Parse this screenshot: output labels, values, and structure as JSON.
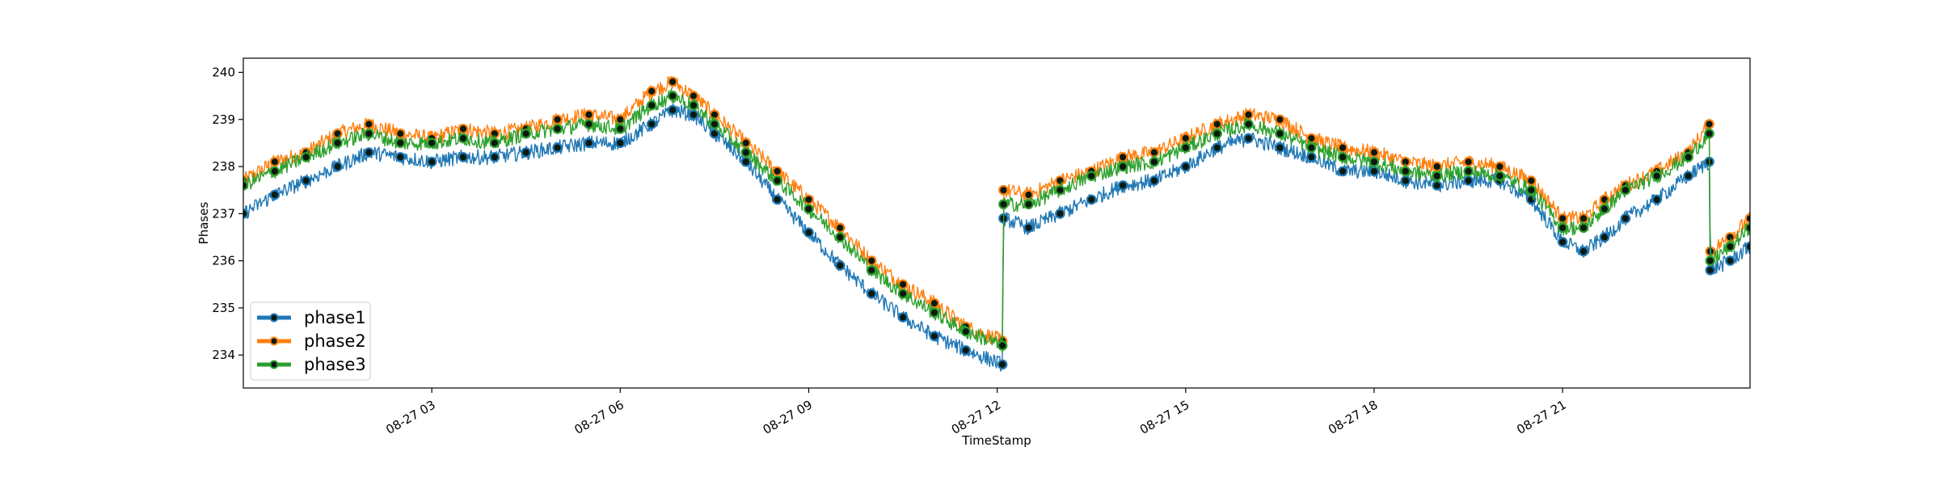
{
  "chart_data": {
    "type": "line",
    "title": "",
    "xlabel": "TimeStamp",
    "ylabel": "Phases",
    "x_range": [
      "08-27 00:00",
      "08-27 23:59"
    ],
    "ylim": [
      233.3,
      240.3
    ],
    "x_ticks": [
      {
        "at": "08-27 03:00",
        "label": "08-27 03"
      },
      {
        "at": "08-27 06:00",
        "label": "08-27 06"
      },
      {
        "at": "08-27 09:00",
        "label": "08-27 09"
      },
      {
        "at": "08-27 12:00",
        "label": "08-27 12"
      },
      {
        "at": "08-27 15:00",
        "label": "08-27 15"
      },
      {
        "at": "08-27 18:00",
        "label": "08-27 18"
      },
      {
        "at": "08-27 21:00",
        "label": "08-27 21"
      }
    ],
    "y_ticks": [
      234,
      235,
      236,
      237,
      238,
      239,
      240
    ],
    "grid": false,
    "legend": "lower-left",
    "x": [
      "00:00",
      "00:30",
      "01:00",
      "01:30",
      "02:00",
      "02:30",
      "03:00",
      "03:30",
      "04:00",
      "04:30",
      "05:00",
      "05:30",
      "06:00",
      "06:30",
      "06:50",
      "07:10",
      "07:30",
      "08:00",
      "08:30",
      "09:00",
      "09:30",
      "10:00",
      "10:30",
      "11:00",
      "11:30",
      "12:05",
      "12:06",
      "12:30",
      "13:00",
      "13:30",
      "14:00",
      "14:30",
      "15:00",
      "15:30",
      "16:00",
      "16:30",
      "17:00",
      "17:30",
      "18:00",
      "18:30",
      "19:00",
      "19:30",
      "20:00",
      "20:30",
      "21:00",
      "21:20",
      "21:40",
      "22:00",
      "22:30",
      "23:00",
      "23:20",
      "23:21",
      "23:40",
      "23:59"
    ],
    "series": [
      {
        "name": "phase1",
        "color": "#1f77b4",
        "values": [
          237.0,
          237.4,
          237.7,
          238.0,
          238.3,
          238.2,
          238.1,
          238.2,
          238.2,
          238.3,
          238.4,
          238.5,
          238.5,
          238.9,
          239.2,
          239.1,
          238.7,
          238.1,
          237.3,
          236.6,
          235.9,
          235.3,
          234.8,
          234.4,
          234.1,
          233.8,
          236.9,
          236.7,
          237.0,
          237.3,
          237.6,
          237.7,
          238.0,
          238.4,
          238.6,
          238.4,
          238.2,
          237.9,
          237.9,
          237.7,
          237.6,
          237.7,
          237.7,
          237.3,
          236.4,
          236.2,
          236.5,
          236.9,
          237.3,
          237.8,
          238.1,
          235.8,
          236.0,
          236.3
        ]
      },
      {
        "name": "phase2",
        "color": "#ff7f0e",
        "values": [
          237.7,
          238.1,
          238.3,
          238.7,
          238.9,
          238.7,
          238.6,
          238.8,
          238.7,
          238.8,
          239.0,
          239.1,
          239.0,
          239.6,
          239.8,
          239.5,
          239.1,
          238.5,
          237.9,
          237.3,
          236.7,
          236.0,
          235.5,
          235.1,
          234.6,
          234.3,
          237.5,
          237.4,
          237.7,
          237.9,
          238.2,
          238.3,
          238.6,
          238.9,
          239.1,
          239.0,
          238.6,
          238.4,
          238.3,
          238.1,
          238.0,
          238.1,
          238.0,
          237.7,
          236.9,
          236.9,
          237.3,
          237.6,
          237.9,
          238.3,
          238.9,
          236.2,
          236.5,
          236.9
        ]
      },
      {
        "name": "phase3",
        "color": "#2ca02c",
        "values": [
          237.6,
          237.9,
          238.2,
          238.5,
          238.7,
          238.5,
          238.5,
          238.6,
          238.5,
          238.7,
          238.8,
          238.9,
          238.8,
          239.3,
          239.5,
          239.3,
          238.9,
          238.3,
          237.7,
          237.1,
          236.5,
          235.8,
          235.3,
          234.9,
          234.5,
          234.2,
          237.2,
          237.2,
          237.5,
          237.8,
          238.0,
          238.1,
          238.4,
          238.7,
          238.9,
          238.7,
          238.4,
          238.2,
          238.1,
          237.9,
          237.8,
          237.9,
          237.8,
          237.5,
          236.7,
          236.7,
          237.1,
          237.5,
          237.8,
          238.2,
          238.7,
          236.0,
          236.3,
          236.7
        ]
      }
    ],
    "legend_entries": [
      "phase1",
      "phase2",
      "phase3"
    ]
  }
}
